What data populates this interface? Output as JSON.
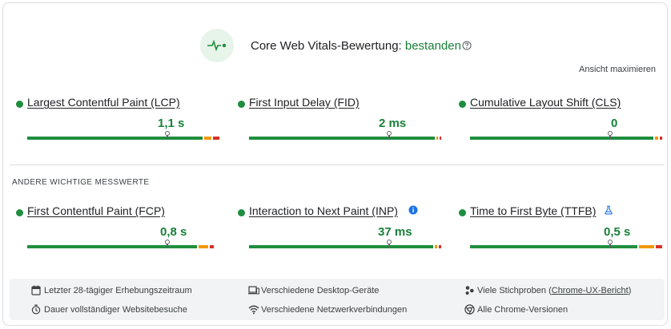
{
  "header": {
    "title_prefix": "Core Web Vitals-Bewertung:",
    "status": "bestanden",
    "help_icon": "help-circle-icon",
    "expand_label": "Ansicht maximieren"
  },
  "colors": {
    "good": "#1e8e3e",
    "needs_improvement": "#f29900",
    "poor": "#d93025",
    "badge_bg": "#e6f4ea"
  },
  "core_metrics": [
    {
      "name": "Largest Contentful Paint (LCP)",
      "value": "1,1 s",
      "distribution": [
        0.926,
        0.042,
        0.032
      ],
      "percentile_position": 0.73
    },
    {
      "name": "First Input Delay (FID)",
      "value": "2 ms",
      "distribution": [
        0.984,
        0.008,
        0.008
      ],
      "percentile_position": 0.73
    },
    {
      "name": "Cumulative Layout Shift (CLS)",
      "value": "0",
      "distribution": [
        0.971,
        0.017,
        0.012
      ],
      "percentile_position": 0.73
    }
  ],
  "other_section_label": "ANDERE WICHTIGE MESSWERTE",
  "other_metrics": [
    {
      "name": "First Contentful Paint (FCP)",
      "value": "0,8 s",
      "distribution": [
        0.9,
        0.05,
        0.02
      ],
      "percentile_position": 0.73,
      "icon": ""
    },
    {
      "name": "Interaction to Next Paint (INP)",
      "value": "37 ms",
      "distribution": [
        0.975,
        0.012,
        0.013
      ],
      "percentile_position": 0.73,
      "icon": "info-icon"
    },
    {
      "name": "Time to First Byte (TTFB)",
      "value": "0,5 s",
      "distribution": [
        0.885,
        0.08,
        0.035
      ],
      "percentile_position": 0.73,
      "icon": "lab-flask-icon"
    }
  ],
  "footer": {
    "items": [
      {
        "icon": "calendar-icon",
        "text": "Letzter 28-tägiger Erhebungszeitraum"
      },
      {
        "icon": "devices-icon",
        "text": "Verschiedene Desktop-Geräte"
      },
      {
        "icon": "samples-icon",
        "text": "Viele Stichproben (",
        "link": "Chrome-UX-Bericht",
        "suffix": ")"
      },
      {
        "icon": "timer-icon",
        "text": "Dauer vollständiger Websitebesuche"
      },
      {
        "icon": "wifi-icon",
        "text": "Verschiedene Netzwerkverbindungen"
      },
      {
        "icon": "chrome-icon",
        "text": "Alle Chrome-Versionen"
      }
    ]
  }
}
